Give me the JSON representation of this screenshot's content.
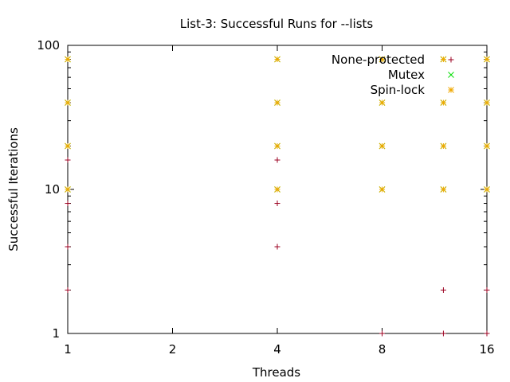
{
  "chart_data": {
    "type": "scatter",
    "title": "List-3: Successful Runs for --lists",
    "xlabel": "Threads",
    "ylabel": "Successful Iterations",
    "xscale": "log2",
    "yscale": "log10",
    "xlim": [
      1,
      16
    ],
    "ylim": [
      1,
      100
    ],
    "xticks": [
      1,
      2,
      4,
      8,
      16
    ],
    "xtick_labels": [
      "1",
      "2",
      "4",
      "8",
      "16"
    ],
    "yticks": [
      1,
      10,
      100
    ],
    "ytick_labels": [
      "1",
      "10",
      "100"
    ],
    "grid": false,
    "legend_position": "top-right",
    "series": [
      {
        "name": "None-protected",
        "marker": "plus",
        "color": "#9b0020",
        "points": [
          [
            1,
            2
          ],
          [
            1,
            4
          ],
          [
            1,
            8
          ],
          [
            1,
            16
          ],
          [
            4,
            4
          ],
          [
            4,
            8
          ],
          [
            4,
            16
          ],
          [
            8,
            1
          ],
          [
            12,
            1
          ],
          [
            12,
            2
          ],
          [
            16,
            1
          ],
          [
            16,
            2
          ]
        ]
      },
      {
        "name": "Mutex",
        "marker": "cross",
        "color": "#00dd00",
        "points": [
          [
            1,
            10
          ],
          [
            1,
            20
          ],
          [
            1,
            40
          ],
          [
            1,
            80
          ],
          [
            4,
            10
          ],
          [
            4,
            20
          ],
          [
            4,
            40
          ],
          [
            4,
            80
          ],
          [
            8,
            10
          ],
          [
            8,
            20
          ],
          [
            8,
            40
          ],
          [
            8,
            80
          ],
          [
            12,
            10
          ],
          [
            12,
            20
          ],
          [
            12,
            40
          ],
          [
            12,
            80
          ],
          [
            16,
            10
          ],
          [
            16,
            20
          ],
          [
            16,
            40
          ],
          [
            16,
            80
          ]
        ]
      },
      {
        "name": "Spin-lock",
        "marker": "star",
        "color": "#f0a800",
        "points": [
          [
            1,
            10
          ],
          [
            1,
            20
          ],
          [
            1,
            40
          ],
          [
            1,
            80
          ],
          [
            4,
            10
          ],
          [
            4,
            20
          ],
          [
            4,
            40
          ],
          [
            4,
            80
          ],
          [
            8,
            10
          ],
          [
            8,
            20
          ],
          [
            8,
            40
          ],
          [
            8,
            80
          ],
          [
            12,
            10
          ],
          [
            12,
            20
          ],
          [
            12,
            40
          ],
          [
            12,
            80
          ],
          [
            16,
            10
          ],
          [
            16,
            20
          ],
          [
            16,
            40
          ],
          [
            16,
            80
          ]
        ]
      }
    ]
  }
}
